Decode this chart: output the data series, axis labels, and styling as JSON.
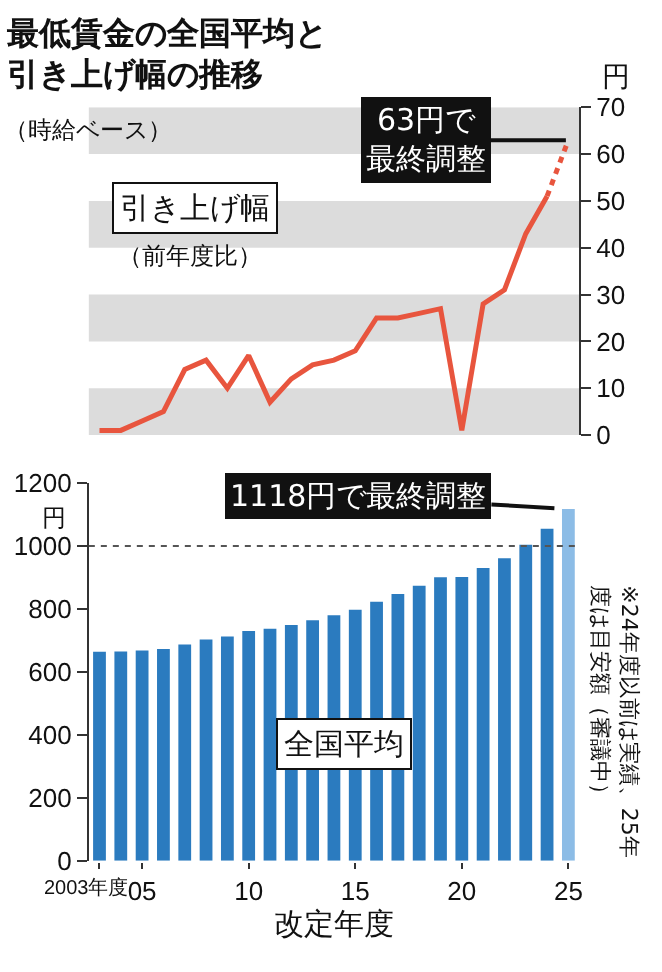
{
  "chart_data": [
    {
      "type": "line",
      "title": "最低賃金の全国平均と引き上げ幅の推移",
      "subtitle": "（時給ベース）",
      "ylabel": "円",
      "categories": [
        null,
        null,
        null,
        null,
        null,
        null,
        null,
        null,
        null,
        null,
        null,
        null,
        null,
        null,
        null,
        null,
        null,
        null,
        null,
        null,
        null,
        null,
        null
      ],
      "series": [
        {
          "color": "#e8553e",
          "line_style": "solid",
          "values": [
            1,
            1,
            3,
            5,
            14,
            16,
            10,
            17,
            7,
            12,
            15,
            16,
            18,
            25,
            25,
            26,
            27,
            1,
            28,
            31,
            43,
            51,
            null
          ]
        },
        {
          "color": "#e8553e",
          "line_style": "dotted",
          "values": [
            null,
            null,
            null,
            null,
            null,
            null,
            null,
            null,
            null,
            null,
            null,
            null,
            null,
            null,
            null,
            null,
            null,
            null,
            null,
            null,
            null,
            51,
            63
          ]
        }
      ],
      "ylim": [
        0,
        70
      ],
      "yticks": [
        0,
        10,
        20,
        30,
        40,
        50,
        60,
        70
      ],
      "tick_labels": "y",
      "marker": "none",
      "grid": false,
      "bands": [
        {
          "axis": "y",
          "from": 0,
          "to": 10,
          "color": "#dcdcdc"
        },
        {
          "axis": "y",
          "from": 20,
          "to": 30,
          "color": "#dcdcdc"
        },
        {
          "axis": "y",
          "from": 40,
          "to": 50,
          "color": "#dcdcdc"
        },
        {
          "axis": "y",
          "from": 60,
          "to": 70,
          "color": "#dcdcdc"
        }
      ],
      "annotations": [
        "引き上げ幅",
        "（前年度比）",
        "63円で最終調整"
      ]
    },
    {
      "type": "bar",
      "ylabel": "円",
      "xlabel": "改定年度",
      "categories": [
        "2003年度",
        null,
        "05",
        null,
        null,
        null,
        null,
        "10",
        null,
        null,
        null,
        null,
        "15",
        null,
        null,
        null,
        null,
        "20",
        null,
        null,
        null,
        null,
        "25"
      ],
      "values": [
        664,
        665,
        668,
        673,
        687,
        703,
        713,
        730,
        737,
        749,
        764,
        780,
        798,
        823,
        848,
        874,
        901,
        902,
        930,
        961,
        1004,
        1055,
        1118
      ],
      "colors": [
        "#2b7bbf",
        "#2b7bbf",
        "#2b7bbf",
        "#2b7bbf",
        "#2b7bbf",
        "#2b7bbf",
        "#2b7bbf",
        "#2b7bbf",
        "#2b7bbf",
        "#2b7bbf",
        "#2b7bbf",
        "#2b7bbf",
        "#2b7bbf",
        "#2b7bbf",
        "#2b7bbf",
        "#2b7bbf",
        "#2b7bbf",
        "#2b7bbf",
        "#2b7bbf",
        "#2b7bbf",
        "#2b7bbf",
        "#2b7bbf",
        "#8cbce6"
      ],
      "ylim": [
        0,
        1200
      ],
      "yticks": [
        0,
        200,
        400,
        600,
        800,
        1000,
        1200
      ],
      "grid": false,
      "ref_lines": [
        {
          "axis": "y",
          "value": 1000,
          "color": "#555555",
          "line_style": "dotted"
        }
      ],
      "annotations": [
        "全国平均",
        {
          "text": "1118円で最終調整",
          "x": "25",
          "y": 1118
        },
        "※24年度以前は実績、25年度は目安額（審議中）"
      ]
    }
  ]
}
